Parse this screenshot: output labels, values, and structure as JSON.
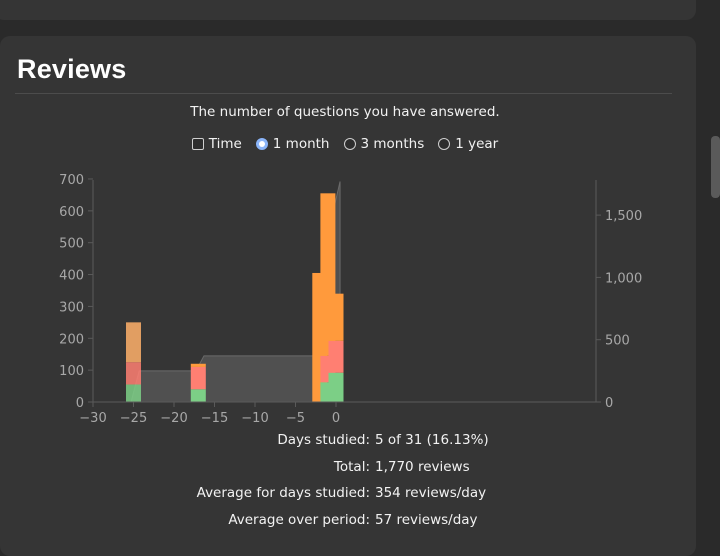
{
  "section": {
    "title": "Reviews",
    "subtitle": "The number of questions you have answered."
  },
  "range": {
    "time_label": "Time",
    "time_checked": false,
    "options": [
      {
        "label": "1 month",
        "checked": true
      },
      {
        "label": "3 months",
        "checked": false
      },
      {
        "label": "1 year",
        "checked": false
      }
    ]
  },
  "chart_data": {
    "type": "bar",
    "stacked": true,
    "x_ticks": [
      -30,
      -25,
      -20,
      -15,
      -10,
      -5,
      0
    ],
    "x_tick_labels": [
      "−30",
      "−25",
      "−20",
      "−15",
      "−10",
      "−5",
      "0"
    ],
    "y_left_ticks": [
      0,
      100,
      200,
      300,
      400,
      500,
      600,
      700
    ],
    "y_left_tick_labels": [
      "0",
      "100",
      "200",
      "300",
      "400",
      "500",
      "600",
      "700"
    ],
    "y_right_ticks": [
      0,
      500,
      1000,
      1500
    ],
    "y_right_tick_labels": [
      "0",
      "500",
      "1,000",
      "1,500"
    ],
    "xlim": [
      -30,
      1
    ],
    "ylim_left": [
      0,
      700
    ],
    "ylim_right": [
      0,
      1800
    ],
    "colors": {
      "young": "#ff9a3c",
      "learning": "#ff7f72",
      "mature": "#7ccf86",
      "young_light": "#ffb06a",
      "cumulative": "#555555"
    },
    "bars": [
      {
        "day": -25,
        "young": 125,
        "learning": 70,
        "mature": 55,
        "light": true
      },
      {
        "day": -17,
        "young": 10,
        "learning": 70,
        "mature": 40,
        "light": false
      },
      {
        "day": -2,
        "young": 405,
        "learning": 0,
        "mature": 0,
        "light": false
      },
      {
        "day": -1,
        "young": 510,
        "learning": 83,
        "mature": 62,
        "light": false
      },
      {
        "day": 0,
        "young": 148,
        "learning": 100,
        "mature": 92,
        "light": false
      }
    ],
    "cumulative": [
      {
        "x": -25.3,
        "y": 0
      },
      {
        "x": -24.3,
        "y": 250
      },
      {
        "x": -17.3,
        "y": 250
      },
      {
        "x": -16.3,
        "y": 370
      },
      {
        "x": -2.7,
        "y": 370
      },
      {
        "x": -2.3,
        "y": 420
      },
      {
        "x": -1.7,
        "y": 775
      },
      {
        "x": -0.7,
        "y": 1430
      },
      {
        "x": 0.5,
        "y": 1770
      }
    ]
  },
  "stats": [
    {
      "label": "Days studied:",
      "value": "5 of 31 (16.13%)"
    },
    {
      "label": "Total:",
      "value": "1,770 reviews"
    },
    {
      "label": "Average for days studied:",
      "value": "354 reviews/day"
    },
    {
      "label": "Average over period:",
      "value": "57 reviews/day"
    }
  ]
}
